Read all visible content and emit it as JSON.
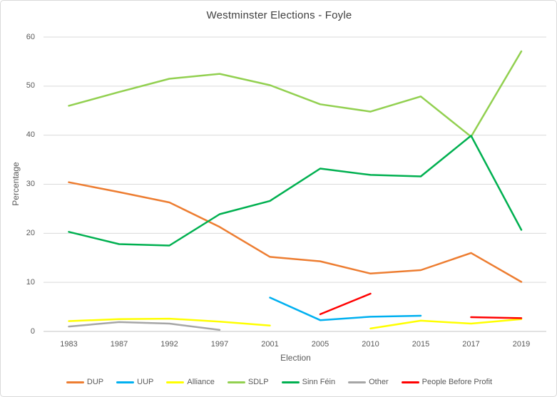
{
  "chart_data": {
    "type": "line",
    "title": "Westminster Elections - Foyle",
    "xlabel": "Election",
    "ylabel": "Percentage",
    "ylim": [
      0,
      60
    ],
    "yticks": [
      0,
      10,
      20,
      30,
      40,
      50,
      60
    ],
    "grid": true,
    "legend_position": "bottom",
    "categories": [
      "1983",
      "1987",
      "1992",
      "1997",
      "2001",
      "2005",
      "2010",
      "2015",
      "2017",
      "2019"
    ],
    "series": [
      {
        "name": "DUP",
        "color": "#ED7D31",
        "values": [
          30.4,
          28.4,
          26.3,
          21.3,
          15.2,
          14.3,
          11.8,
          12.5,
          16.0,
          10.1
        ]
      },
      {
        "name": "UUP",
        "color": "#00B0F0",
        "values": [
          null,
          null,
          null,
          null,
          6.9,
          2.3,
          3.0,
          3.2,
          null,
          null
        ]
      },
      {
        "name": "Alliance",
        "color": "#FFFF00",
        "values": [
          2.1,
          2.5,
          2.6,
          2.0,
          1.2,
          null,
          0.6,
          2.2,
          1.6,
          2.5
        ]
      },
      {
        "name": "SDLP",
        "color": "#92D050",
        "values": [
          46.0,
          48.8,
          51.5,
          52.5,
          50.2,
          46.3,
          44.8,
          47.9,
          39.7,
          57.1
        ]
      },
      {
        "name": "Sinn Féin",
        "color": "#00B050",
        "values": [
          20.3,
          17.8,
          17.5,
          23.9,
          26.6,
          33.2,
          31.9,
          31.6,
          39.9,
          20.7
        ]
      },
      {
        "name": "Other",
        "color": "#A6A6A6",
        "values": [
          1.0,
          1.9,
          1.6,
          0.3,
          null,
          null,
          null,
          null,
          null,
          null
        ]
      },
      {
        "name": "People Before Profit",
        "color": "#FF0000",
        "values": [
          null,
          null,
          null,
          null,
          null,
          3.5,
          7.7,
          null,
          2.9,
          2.7
        ]
      }
    ]
  },
  "colors": {
    "background": "#FFFFFF",
    "gridline": "#D9D9D9",
    "axis_line": "#C6C6C6",
    "tick_text": "#595959",
    "title_text": "#404040"
  }
}
